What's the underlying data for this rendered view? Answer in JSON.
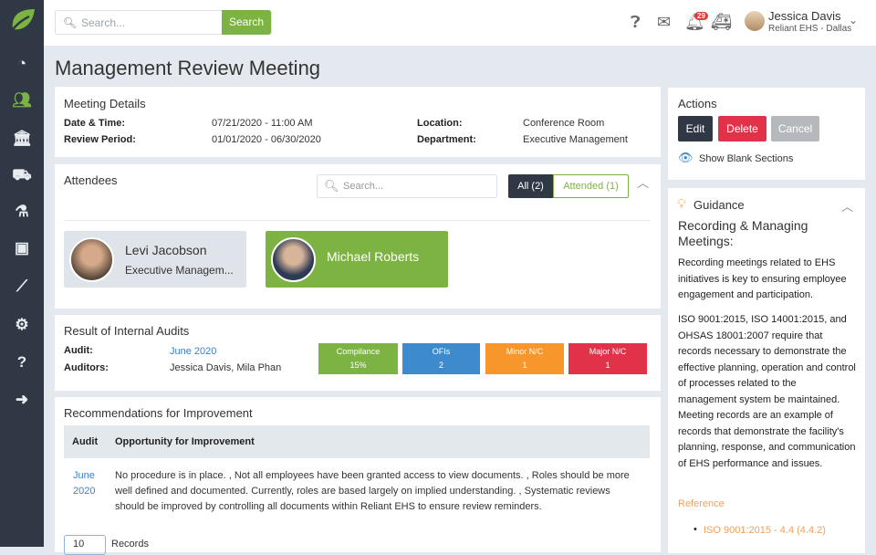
{
  "header": {
    "search_placeholder": "Search...",
    "search_button": "Search",
    "notifications_count": "29",
    "user_name": "Jessica Davis",
    "user_org": "Reliant EHS - Dallas"
  },
  "sidebar": {
    "items": [
      "dashboard",
      "people",
      "institution",
      "truck",
      "flask",
      "briefcase",
      "chart",
      "settings",
      "help",
      "expand"
    ]
  },
  "page_title": "Management Review Meeting",
  "meeting": {
    "heading": "Meeting Details",
    "date_label": "Date & Time:",
    "date": "07/21/2020 - 11:00 AM",
    "period_label": "Review Period:",
    "period": "01/01/2020 - 06/30/2020",
    "location_label": "Location:",
    "location": "Conference Room",
    "department_label": "Department:",
    "department": "Executive Management"
  },
  "attendees": {
    "heading": "Attendees",
    "search_placeholder": "Search...",
    "all_tab": "All (2)",
    "attended_tab": "Attended (1)",
    "people": [
      {
        "name": "Levi Jacobson",
        "role": "Executive Managem..."
      },
      {
        "name": "Michael Roberts"
      }
    ]
  },
  "audits": {
    "heading": "Result of Internal Audits",
    "audit_label": "Audit:",
    "audit": "June 2020",
    "auditors_label": "Auditors:",
    "auditors": "Jessica Davis, Mila Phan",
    "metrics": [
      {
        "label": "Compilance",
        "value": "15%",
        "color": "#7cb342"
      },
      {
        "label": "OFIs",
        "value": "2",
        "color": "#3d8bcd"
      },
      {
        "label": "Minor N/C",
        "value": "1",
        "color": "#f7962b"
      },
      {
        "label": "Major N/C",
        "value": "1",
        "color": "#e0334a"
      }
    ]
  },
  "recommendations": {
    "heading": "Recommendations for Improvement",
    "col_audit": "Audit",
    "col_opp": "Opportunity for Improvement",
    "rows": [
      {
        "audit": "June 2020",
        "text": "No procedure is in place. , Not all employees have been granted access to view documents. , Roles should be more well defined and documented. Currently, roles are based largely on implied understanding. , Systematic reviews should be improved by controlling all documents within Reliant EHS to ensure review reminders."
      }
    ],
    "page_size": "10",
    "records_label": "Records"
  },
  "actions": {
    "heading": "Actions",
    "edit": "Edit",
    "delete": "Delete",
    "cancel": "Cancel",
    "show_blank": "Show Blank Sections"
  },
  "guidance": {
    "heading": "Guidance",
    "subtitle": "Recording & Managing Meetings:",
    "p1": "Recording meetings related to EHS initiatives is key to ensuring employee engagement and participation.",
    "p2": "ISO 9001:2015, ISO 14001:2015, and OHSAS 18001:2007 require that records necessary to demonstrate the effective planning, operation and control of processes related to the management system be maintained. Meeting records are an example of records that demonstrate the facility's planning, response, and communication of EHS performance and issues.",
    "reference_label": "Reference",
    "references": [
      "ISO 9001:2015 - 4.4 (4.4.2)"
    ]
  }
}
